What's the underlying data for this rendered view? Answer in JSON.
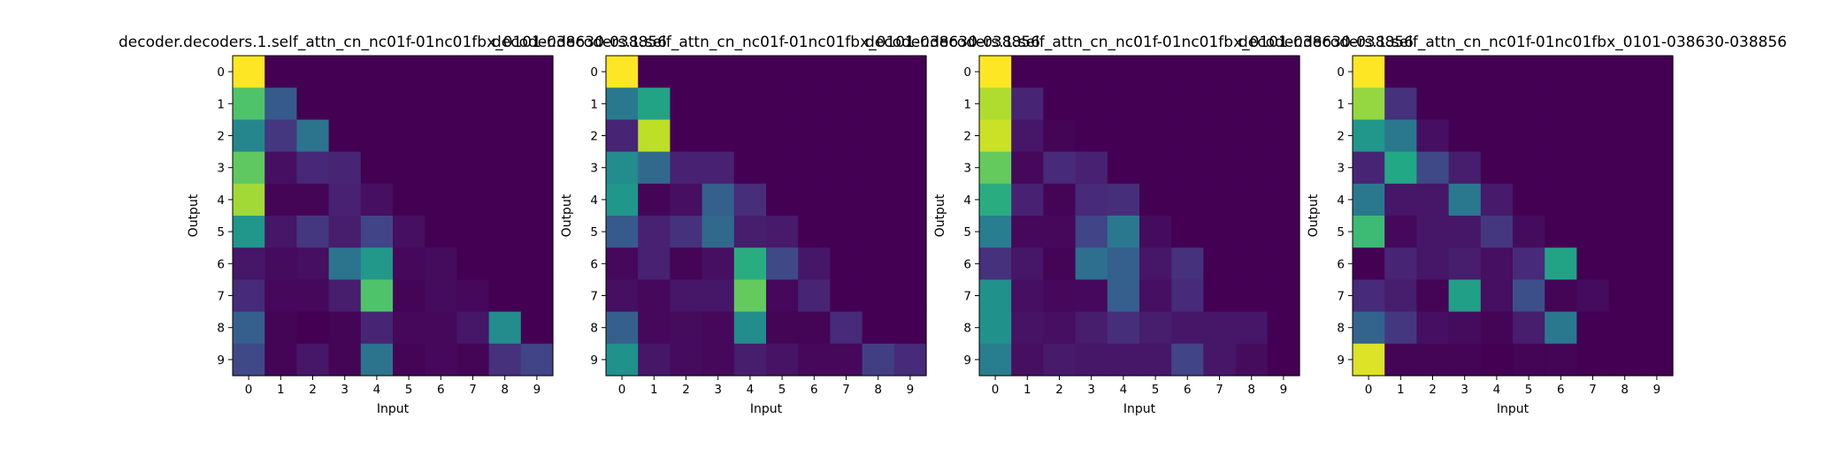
{
  "chart_data": [
    {
      "type": "heatmap",
      "title": "decoder.decoders.1.self_attn_cn_nc01f-01nc01fbx_0101-038630-038856",
      "xlabel": "Input",
      "ylabel": "Output",
      "x_ticks": [
        "0",
        "1",
        "2",
        "3",
        "4",
        "5",
        "6",
        "7",
        "8",
        "9"
      ],
      "y_ticks": [
        "0",
        "1",
        "2",
        "3",
        "4",
        "5",
        "6",
        "7",
        "8",
        "9"
      ],
      "colormap": "viridis",
      "vrange": [
        0,
        1
      ],
      "values": [
        [
          1.0,
          0,
          0,
          0,
          0,
          0,
          0,
          0,
          0,
          0
        ],
        [
          0.72,
          0.28,
          0,
          0,
          0,
          0,
          0,
          0,
          0,
          0
        ],
        [
          0.46,
          0.16,
          0.38,
          0,
          0,
          0,
          0,
          0,
          0,
          0
        ],
        [
          0.75,
          0.04,
          0.11,
          0.1,
          0,
          0,
          0,
          0,
          0,
          0
        ],
        [
          0.86,
          0.01,
          0.01,
          0.09,
          0.04,
          0,
          0,
          0,
          0,
          0
        ],
        [
          0.52,
          0.06,
          0.16,
          0.08,
          0.2,
          0.04,
          0,
          0,
          0,
          0
        ],
        [
          0.06,
          0.03,
          0.04,
          0.38,
          0.53,
          0.02,
          0.03,
          0,
          0,
          0
        ],
        [
          0.12,
          0.02,
          0.02,
          0.08,
          0.72,
          0.01,
          0.03,
          0.02,
          0,
          0
        ],
        [
          0.3,
          0.01,
          0.0,
          0.01,
          0.1,
          0.02,
          0.02,
          0.06,
          0.48,
          0.0
        ],
        [
          0.22,
          0.01,
          0.06,
          0.01,
          0.38,
          0.01,
          0.02,
          0.01,
          0.14,
          0.2
        ]
      ]
    },
    {
      "type": "heatmap",
      "title": "decoder.decoders.1.self_attn_cn_nc01f-01nc01fbx_0101-038630-038856",
      "xlabel": "Input",
      "ylabel": "Output",
      "x_ticks": [
        "0",
        "1",
        "2",
        "3",
        "4",
        "5",
        "6",
        "7",
        "8",
        "9"
      ],
      "y_ticks": [
        "0",
        "1",
        "2",
        "3",
        "4",
        "5",
        "6",
        "7",
        "8",
        "9"
      ],
      "colormap": "viridis",
      "vrange": [
        0,
        1
      ],
      "values": [
        [
          1.0,
          0,
          0,
          0,
          0,
          0,
          0,
          0,
          0,
          0
        ],
        [
          0.4,
          0.58,
          0,
          0,
          0,
          0,
          0,
          0,
          0,
          0
        ],
        [
          0.1,
          0.9,
          0,
          0,
          0,
          0,
          0,
          0,
          0,
          0
        ],
        [
          0.48,
          0.34,
          0.09,
          0.09,
          0,
          0,
          0,
          0,
          0,
          0
        ],
        [
          0.52,
          0.01,
          0.04,
          0.3,
          0.13,
          0,
          0,
          0,
          0,
          0
        ],
        [
          0.28,
          0.09,
          0.14,
          0.34,
          0.08,
          0.07,
          0,
          0,
          0,
          0
        ],
        [
          0.02,
          0.09,
          0.01,
          0.04,
          0.62,
          0.22,
          0.06,
          0,
          0,
          0
        ],
        [
          0.04,
          0.02,
          0.06,
          0.06,
          0.76,
          0.02,
          0.1,
          0,
          0,
          0
        ],
        [
          0.3,
          0.02,
          0.03,
          0.02,
          0.48,
          0.01,
          0.01,
          0.12,
          0,
          0
        ],
        [
          0.5,
          0.06,
          0.03,
          0.02,
          0.08,
          0.05,
          0.02,
          0.02,
          0.18,
          0.12
        ]
      ]
    },
    {
      "type": "heatmap",
      "title": "decoder.decoders.1.self_attn_cn_nc01f-01nc01fbx_0101-038630-038856",
      "xlabel": "Input",
      "ylabel": "Output",
      "x_ticks": [
        "0",
        "1",
        "2",
        "3",
        "4",
        "5",
        "6",
        "7",
        "8",
        "9"
      ],
      "y_ticks": [
        "0",
        "1",
        "2",
        "3",
        "4",
        "5",
        "6",
        "7",
        "8",
        "9"
      ],
      "colormap": "viridis",
      "vrange": [
        0,
        1
      ],
      "values": [
        [
          1.0,
          0,
          0,
          0,
          0,
          0,
          0,
          0,
          0,
          0
        ],
        [
          0.88,
          0.1,
          0,
          0,
          0,
          0,
          0,
          0,
          0,
          0
        ],
        [
          0.92,
          0.06,
          0.01,
          0,
          0,
          0,
          0,
          0,
          0,
          0
        ],
        [
          0.76,
          0.02,
          0.12,
          0.09,
          0,
          0,
          0,
          0,
          0,
          0
        ],
        [
          0.62,
          0.09,
          0.01,
          0.12,
          0.13,
          0,
          0,
          0,
          0,
          0
        ],
        [
          0.42,
          0.02,
          0.02,
          0.2,
          0.4,
          0.03,
          0,
          0,
          0,
          0
        ],
        [
          0.14,
          0.06,
          0.01,
          0.36,
          0.3,
          0.06,
          0.14,
          0,
          0,
          0
        ],
        [
          0.5,
          0.04,
          0.02,
          0.02,
          0.3,
          0.04,
          0.12,
          0,
          0,
          0
        ],
        [
          0.5,
          0.05,
          0.04,
          0.08,
          0.13,
          0.08,
          0.06,
          0.06,
          0.06,
          0
        ],
        [
          0.42,
          0.04,
          0.07,
          0.06,
          0.06,
          0.06,
          0.2,
          0.06,
          0.03,
          0.0
        ]
      ]
    },
    {
      "type": "heatmap",
      "title": "decoder.decoders.1.self_attn_cn_nc01f-01nc01fbx_0101-038630-038856",
      "xlabel": "Input",
      "ylabel": "Output",
      "x_ticks": [
        "0",
        "1",
        "2",
        "3",
        "4",
        "5",
        "6",
        "7",
        "8",
        "9"
      ],
      "y_ticks": [
        "0",
        "1",
        "2",
        "3",
        "4",
        "5",
        "6",
        "7",
        "8",
        "9"
      ],
      "colormap": "viridis",
      "vrange": [
        0,
        1
      ],
      "values": [
        [
          1.0,
          0,
          0,
          0,
          0,
          0,
          0,
          0,
          0,
          0
        ],
        [
          0.84,
          0.14,
          0,
          0,
          0,
          0,
          0,
          0,
          0,
          0
        ],
        [
          0.52,
          0.4,
          0.04,
          0,
          0,
          0,
          0,
          0,
          0,
          0
        ],
        [
          0.1,
          0.6,
          0.22,
          0.08,
          0,
          0,
          0,
          0,
          0,
          0
        ],
        [
          0.4,
          0.06,
          0.06,
          0.4,
          0.07,
          0,
          0,
          0,
          0,
          0
        ],
        [
          0.68,
          0.02,
          0.06,
          0.06,
          0.16,
          0.03,
          0,
          0,
          0,
          0
        ],
        [
          0.0,
          0.1,
          0.06,
          0.08,
          0.04,
          0.12,
          0.58,
          0,
          0,
          0
        ],
        [
          0.12,
          0.08,
          0.01,
          0.56,
          0.04,
          0.24,
          0.01,
          0.03,
          0,
          0
        ],
        [
          0.32,
          0.16,
          0.04,
          0.03,
          0.01,
          0.08,
          0.4,
          0,
          0,
          0
        ],
        [
          0.95,
          0.01,
          0.01,
          0.01,
          0.0,
          0.01,
          0.01,
          0.0,
          0.0,
          0.0
        ]
      ]
    }
  ]
}
